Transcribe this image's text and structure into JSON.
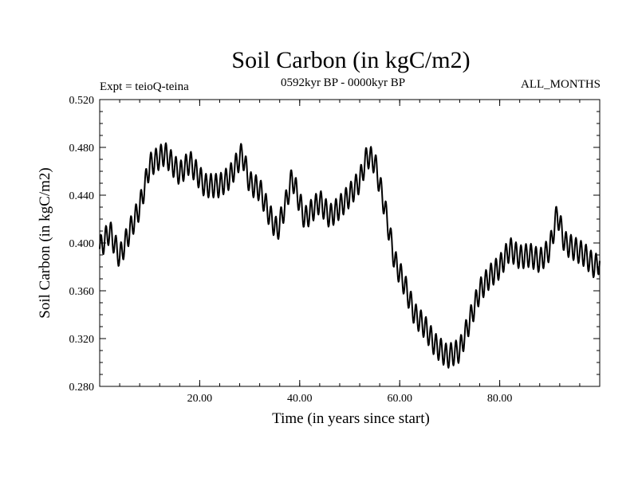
{
  "chart_data": {
    "type": "line",
    "title": "Soil Carbon (in kgC/m2)",
    "subtitle_left": "Expt = teioQ-teina",
    "subtitle_center": "0592kyr BP - 0000kyr BP",
    "subtitle_right": "ALL_MONTHS",
    "xlabel": "Time (in years since start)",
    "ylabel": "Soil Carbon (in kgC/m2)",
    "xlim": [
      0,
      100
    ],
    "ylim": [
      0.28,
      0.52
    ],
    "xticks": [
      20,
      40,
      60,
      80
    ],
    "xtick_labels": [
      "20.00",
      "40.00",
      "60.00",
      "80.00"
    ],
    "yticks": [
      0.28,
      0.32,
      0.36,
      0.4,
      0.44,
      0.48,
      0.52
    ],
    "ytick_labels": [
      "0.280",
      "0.320",
      "0.360",
      "0.400",
      "0.440",
      "0.480",
      "0.520"
    ],
    "grid": false,
    "seasonal_amplitude": 0.01,
    "series": [
      {
        "name": "Soil Carbon",
        "color": "#000000",
        "x": [
          0,
          2,
          4,
          6,
          8,
          10,
          13,
          16,
          18,
          21,
          24,
          26,
          28.5,
          30,
          32,
          34,
          35.5,
          37,
          38.5,
          41,
          44,
          46,
          48,
          50,
          52,
          53.5,
          55,
          57,
          59,
          61,
          63,
          65,
          67,
          69.5,
          72,
          74,
          76,
          78,
          80,
          82,
          84,
          86,
          88,
          90,
          91.5,
          93,
          95,
          97,
          99,
          100
        ],
        "values": [
          0.395,
          0.41,
          0.388,
          0.41,
          0.43,
          0.465,
          0.475,
          0.458,
          0.468,
          0.448,
          0.448,
          0.455,
          0.475,
          0.45,
          0.445,
          0.423,
          0.41,
          0.43,
          0.455,
          0.42,
          0.435,
          0.422,
          0.43,
          0.44,
          0.452,
          0.473,
          0.468,
          0.43,
          0.385,
          0.365,
          0.34,
          0.33,
          0.315,
          0.305,
          0.31,
          0.335,
          0.36,
          0.372,
          0.38,
          0.395,
          0.388,
          0.39,
          0.385,
          0.395,
          0.425,
          0.4,
          0.395,
          0.39,
          0.38,
          0.385
        ]
      }
    ]
  }
}
